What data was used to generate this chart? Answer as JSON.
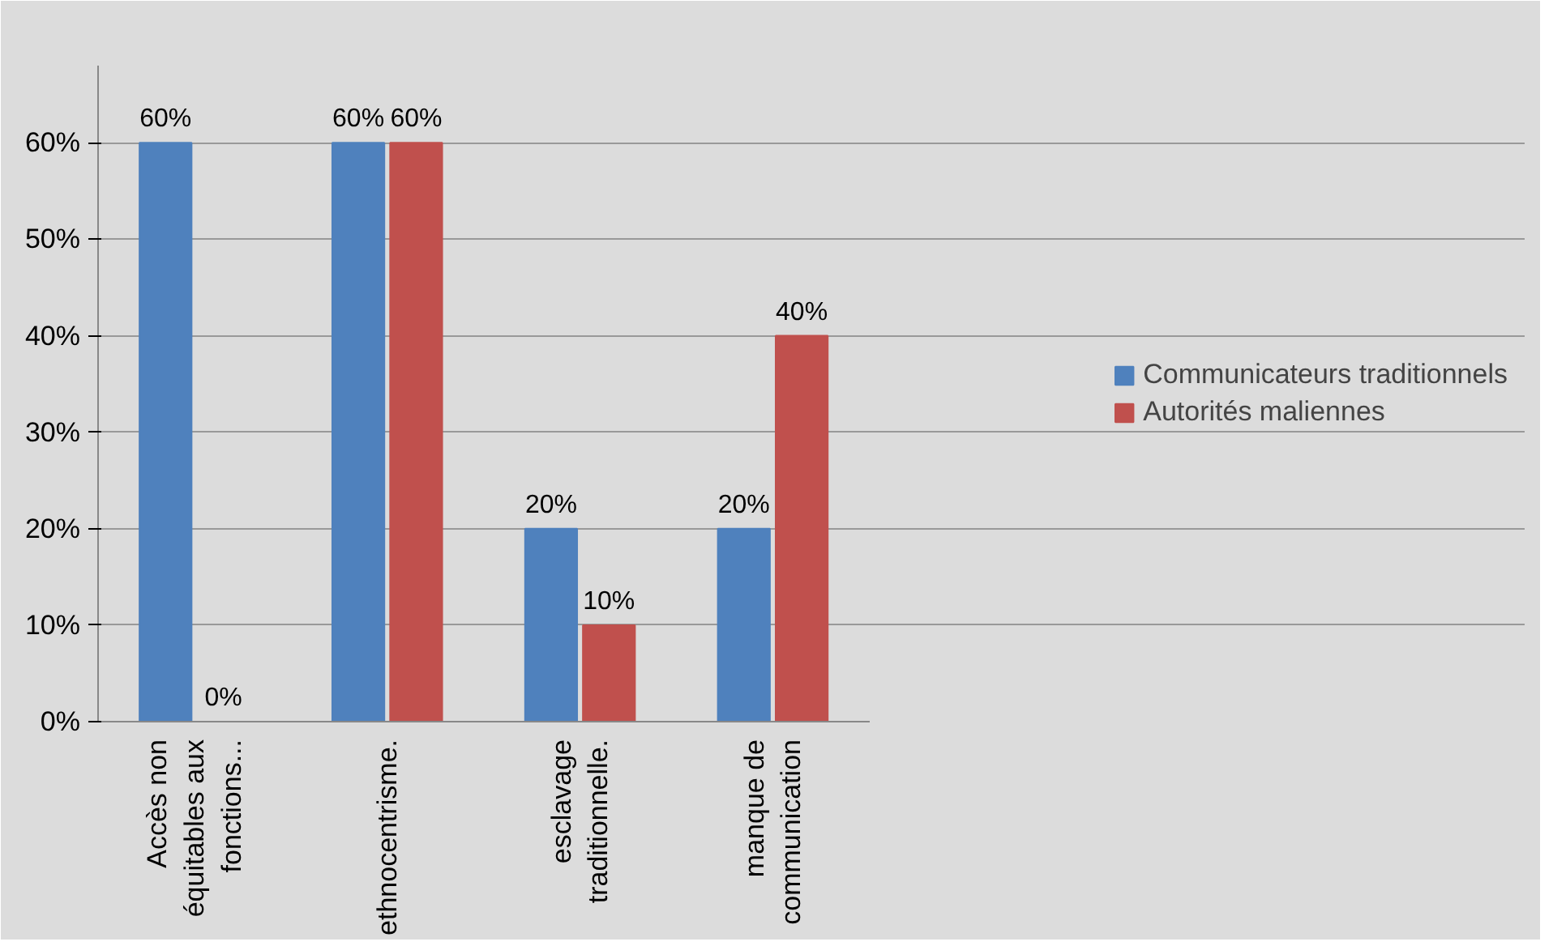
{
  "chart_data": {
    "type": "bar",
    "categories": [
      "Accès non équitables aux fonctions...",
      "ethnocentrisme.",
      "esclavage traditionnelle.",
      "manque de communication"
    ],
    "series": [
      {
        "name": "Communicateurs traditionnels",
        "color": "#4f81bd",
        "values": [
          60,
          60,
          20,
          20
        ],
        "value_labels": [
          "60%",
          "60%",
          "20%",
          "20%"
        ]
      },
      {
        "name": "Autorités maliennes",
        "color": "#c0504d",
        "values": [
          0,
          60,
          10,
          40
        ],
        "value_labels": [
          "0%",
          "60%",
          "10%",
          "40%"
        ]
      }
    ],
    "ylim": [
      0,
      68
    ],
    "yticks": [
      {
        "value": 0,
        "label": "0%"
      },
      {
        "value": 10,
        "label": "10%"
      },
      {
        "value": 20,
        "label": "20%"
      },
      {
        "value": 30,
        "label": "30%"
      },
      {
        "value": 40,
        "label": "40%"
      },
      {
        "value": 50,
        "label": "50%"
      },
      {
        "value": 60,
        "label": "60%"
      }
    ],
    "grid": "y",
    "legend": "right"
  }
}
